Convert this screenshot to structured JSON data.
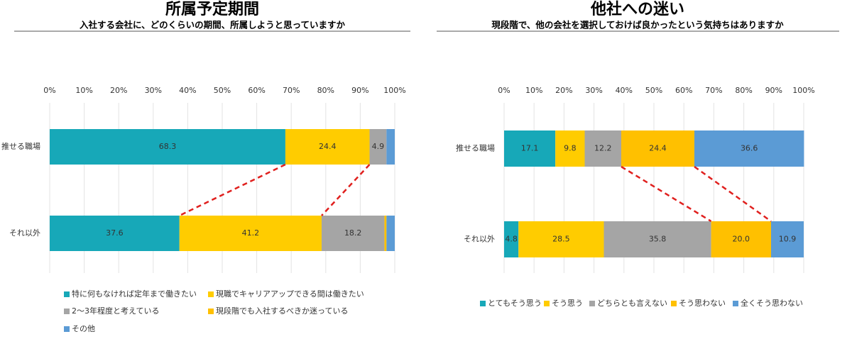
{
  "chart_data": [
    {
      "type": "stacked-bar-horizontal",
      "title": "所属予定期間",
      "subtitle": "入社する会社に、どのくらいの期間、所属しようと思っていますか",
      "categories": [
        "推せる職場",
        "それ以外"
      ],
      "xlim": [
        0,
        100
      ],
      "xticks": [
        {
          "value": 0,
          "label": "0%"
        },
        {
          "value": 10,
          "label": "10%"
        },
        {
          "value": 20,
          "label": "20%"
        },
        {
          "value": 30,
          "label": "30%"
        },
        {
          "value": 40,
          "label": "40%"
        },
        {
          "value": 50,
          "label": "50%"
        },
        {
          "value": 60,
          "label": "60%"
        },
        {
          "value": 70,
          "label": "70%"
        },
        {
          "value": 80,
          "label": "80%"
        },
        {
          "value": 90,
          "label": "90%"
        },
        {
          "value": 100,
          "label": "100%"
        }
      ],
      "grid": true,
      "series": [
        {
          "name": "特に何もなければ定年まで働きたい",
          "color": "#17a8b8",
          "values": [
            68.3,
            37.6
          ]
        },
        {
          "name": "現職でキャリアアップできる間は働きたい",
          "color": "#ffcc00",
          "values": [
            24.4,
            41.2
          ]
        },
        {
          "name": "2～3年程度と考えている",
          "color": "#a5a5a5",
          "values": [
            4.9,
            18.2
          ]
        },
        {
          "name": "現段階でも入社するべきか迷っている",
          "color": "#ffc000",
          "values": [
            0,
            0.6
          ],
          "value_labels": [
            null,
            null
          ]
        },
        {
          "name": "その他",
          "color": "#5b9bd5",
          "values": [
            2.4,
            2.4
          ],
          "value_labels": [
            null,
            null
          ]
        }
      ]
    },
    {
      "type": "stacked-bar-horizontal",
      "title": "他社への迷い",
      "subtitle": "現段階で、他の会社を選択しておけば良かったという気持ちはありますか",
      "categories": [
        "推せる職場",
        "それ以外"
      ],
      "xlim": [
        0,
        100
      ],
      "xticks": [
        {
          "value": 0,
          "label": "0%"
        },
        {
          "value": 10,
          "label": "10%"
        },
        {
          "value": 20,
          "label": "20%"
        },
        {
          "value": 30,
          "label": "30%"
        },
        {
          "value": 40,
          "label": "40%"
        },
        {
          "value": 50,
          "label": "50%"
        },
        {
          "value": 60,
          "label": "60%"
        },
        {
          "value": 70,
          "label": "70%"
        },
        {
          "value": 80,
          "label": "80%"
        },
        {
          "value": 90,
          "label": "90%"
        },
        {
          "value": 100,
          "label": "100%"
        }
      ],
      "grid": true,
      "series": [
        {
          "name": "とてもそう思う",
          "color": "#17a8b8",
          "values": [
            17.1,
            4.8
          ]
        },
        {
          "name": "そう思う",
          "color": "#ffcc00",
          "values": [
            9.8,
            28.5
          ]
        },
        {
          "name": "どちらとも言えない",
          "color": "#a5a5a5",
          "values": [
            12.2,
            35.8
          ]
        },
        {
          "name": "そう思わない",
          "color": "#ffc000",
          "values": [
            24.4,
            20.0
          ],
          "value_labels": [
            "24.4",
            "20.0"
          ]
        },
        {
          "name": "全くそう思わない",
          "color": "#5b9bd5",
          "values": [
            36.6,
            10.9
          ]
        }
      ]
    }
  ]
}
